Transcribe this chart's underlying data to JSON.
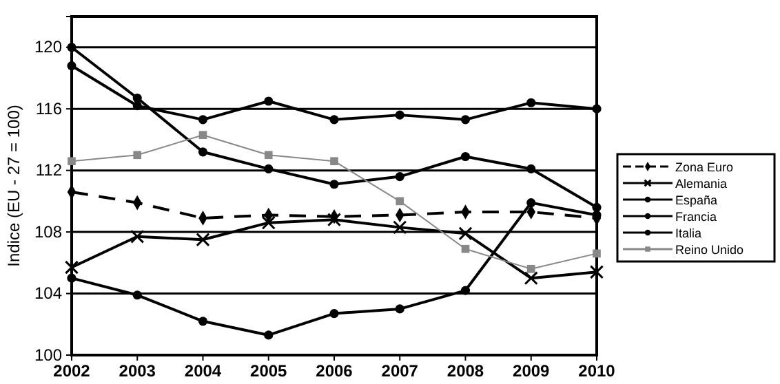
{
  "chart_data": {
    "type": "line",
    "ylabel": "Indice (EU - 27 = 100)",
    "x": [
      2002,
      2003,
      2004,
      2005,
      2006,
      2007,
      2008,
      2009,
      2010
    ],
    "xlim": [
      2002,
      2010
    ],
    "xticks": [
      2002,
      2003,
      2004,
      2005,
      2006,
      2007,
      2008,
      2009,
      2010
    ],
    "ylim": [
      100,
      122
    ],
    "yticks": [
      100,
      104,
      108,
      112,
      116,
      120
    ],
    "grid": "y",
    "legend": "right",
    "series": [
      {
        "name": "Zona Euro",
        "color": "#000000",
        "line_style": "dashed",
        "marker": "diamond",
        "values": [
          110.6,
          109.9,
          108.9,
          109.1,
          109.0,
          109.1,
          109.3,
          109.3,
          108.9
        ]
      },
      {
        "name": "Alemania",
        "color": "#000000",
        "marker": "cross",
        "values": [
          105.7,
          107.7,
          107.5,
          108.6,
          108.8,
          108.3,
          107.9,
          105.0,
          105.4
        ]
      },
      {
        "name": "España",
        "color": "#000000",
        "marker": "circle",
        "values": [
          118.8,
          116.2,
          115.3,
          116.5,
          115.3,
          115.6,
          115.3,
          116.4,
          116.0
        ]
      },
      {
        "name": "Francia",
        "color": "#000000",
        "marker": "circle",
        "values": [
          120.0,
          116.7,
          113.2,
          112.1,
          111.1,
          111.6,
          112.9,
          112.1,
          109.6
        ]
      },
      {
        "name": "Italia",
        "color": "#000000",
        "marker": "circle",
        "values": [
          105.0,
          103.9,
          102.2,
          101.3,
          102.7,
          103.0,
          104.2,
          109.9,
          109.1
        ]
      },
      {
        "name": "Reino Unido",
        "color": "#888888",
        "marker": "square",
        "values": [
          112.6,
          113.0,
          114.3,
          113.0,
          112.6,
          110.0,
          106.9,
          105.6,
          106.6
        ]
      }
    ]
  }
}
